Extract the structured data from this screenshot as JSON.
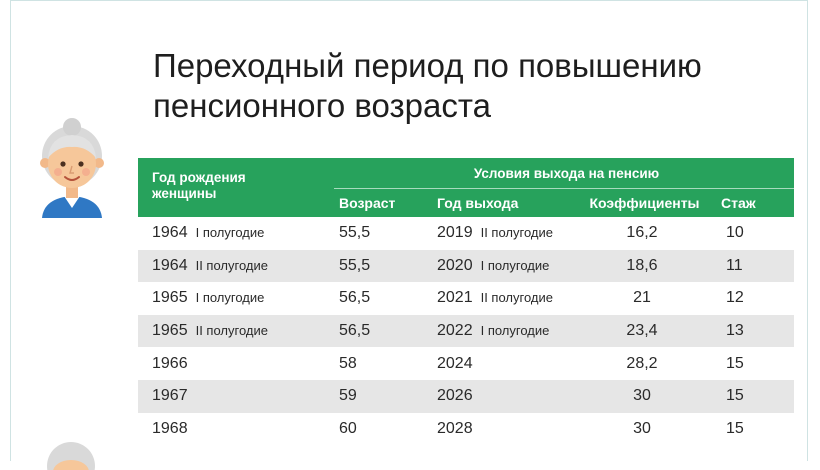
{
  "slide": {
    "title_line1": "Переходный период по повышению",
    "title_line2": "пенсионного возраста"
  },
  "table": {
    "col_birth_year_line1": "Год рождения",
    "col_birth_year_line2": "женщины",
    "group_header": "Условия выхода на пенсию",
    "col_age": "Возраст",
    "col_exit_year": "Год выхода",
    "col_coefficients": "Коэффициенты",
    "col_stazh": "Стаж",
    "header_color": "#27a25c",
    "stripe_color": "#e6e6e6",
    "rows": [
      {
        "year": "1964",
        "half": "I полугодие",
        "age": "55,5",
        "exit_year": "2019",
        "exit_half": "II полугодие",
        "coef": "16,2",
        "stazh": "10"
      },
      {
        "year": "1964",
        "half": "II полугодие",
        "age": "55,5",
        "exit_year": "2020",
        "exit_half": "I полугодие",
        "coef": "18,6",
        "stazh": "11"
      },
      {
        "year": "1965",
        "half": "I полугодие",
        "age": "56,5",
        "exit_year": "2021",
        "exit_half": "II полугодие",
        "coef": "21",
        "stazh": "12"
      },
      {
        "year": "1965",
        "half": "II полугодие",
        "age": "56,5",
        "exit_year": "2022",
        "exit_half": "I полугодие",
        "coef": "23,4",
        "stazh": "13"
      },
      {
        "year": "1966",
        "half": "",
        "age": "58",
        "exit_year": "2024",
        "exit_half": "",
        "coef": "28,2",
        "stazh": "15"
      },
      {
        "year": "1967",
        "half": "",
        "age": "59",
        "exit_year": "2026",
        "exit_half": "",
        "coef": "30",
        "stazh": "15"
      },
      {
        "year": "1968",
        "half": "",
        "age": "60",
        "exit_year": "2028",
        "exit_half": "",
        "coef": "30",
        "stazh": "15"
      }
    ]
  },
  "icons": {
    "avatar": "grandmother-avatar-icon",
    "avatar_partial": "grandmother-avatar-icon"
  }
}
